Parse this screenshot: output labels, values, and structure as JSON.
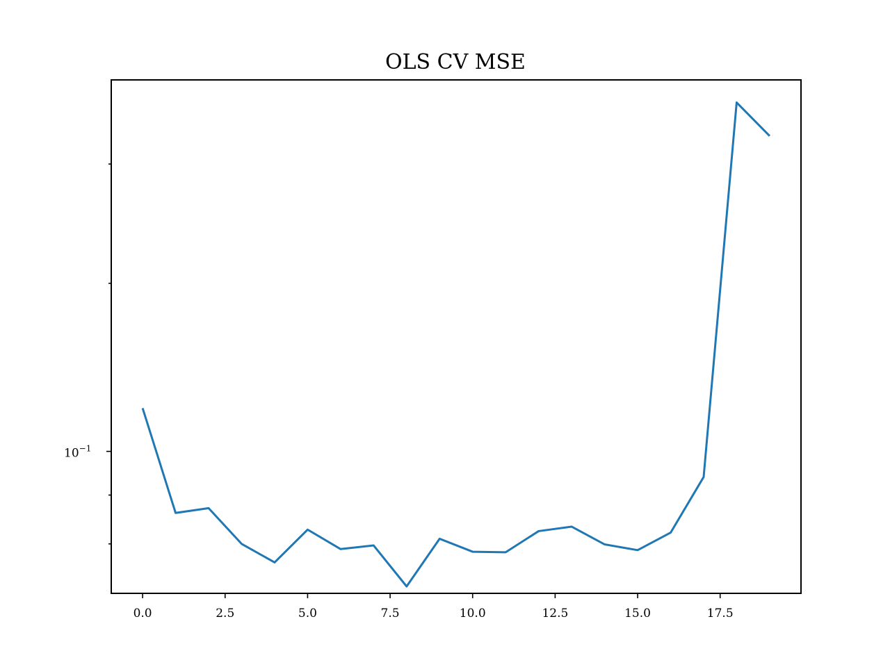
{
  "chart_data": {
    "type": "line",
    "title": "OLS CV MSE",
    "xlabel": "",
    "ylabel": "",
    "xlim": [
      -0.95,
      19.95
    ],
    "ylim": [
      0.071,
      0.245
    ],
    "yscale": "log",
    "grid": false,
    "legend": "none",
    "x_ticks": [
      0.0,
      2.5,
      5.0,
      7.5,
      10.0,
      12.5,
      15.0,
      17.5
    ],
    "x_tick_labels": [
      "0.0",
      "2.5",
      "5.0",
      "7.5",
      "10.0",
      "12.5",
      "15.0",
      "17.5"
    ],
    "y_major_ticks": [
      0.1
    ],
    "y_major_tick_labels": [
      "10",
      "−1"
    ],
    "y_minor_ticks": [
      0.08,
      0.09,
      0.2
    ],
    "series": [
      {
        "color": "#1f77b4",
        "x": [
          0,
          1,
          2,
          3,
          4,
          5,
          6,
          7,
          8,
          9,
          10,
          11,
          12,
          13,
          14,
          15,
          16,
          17,
          18,
          19
        ],
        "values": [
          0.111,
          0.0862,
          0.0872,
          0.08,
          0.0765,
          0.0828,
          0.079,
          0.0797,
          0.0722,
          0.081,
          0.0785,
          0.0784,
          0.0825,
          0.0834,
          0.0799,
          0.0788,
          0.0822,
          0.094,
          0.232,
          0.214
        ]
      }
    ]
  }
}
